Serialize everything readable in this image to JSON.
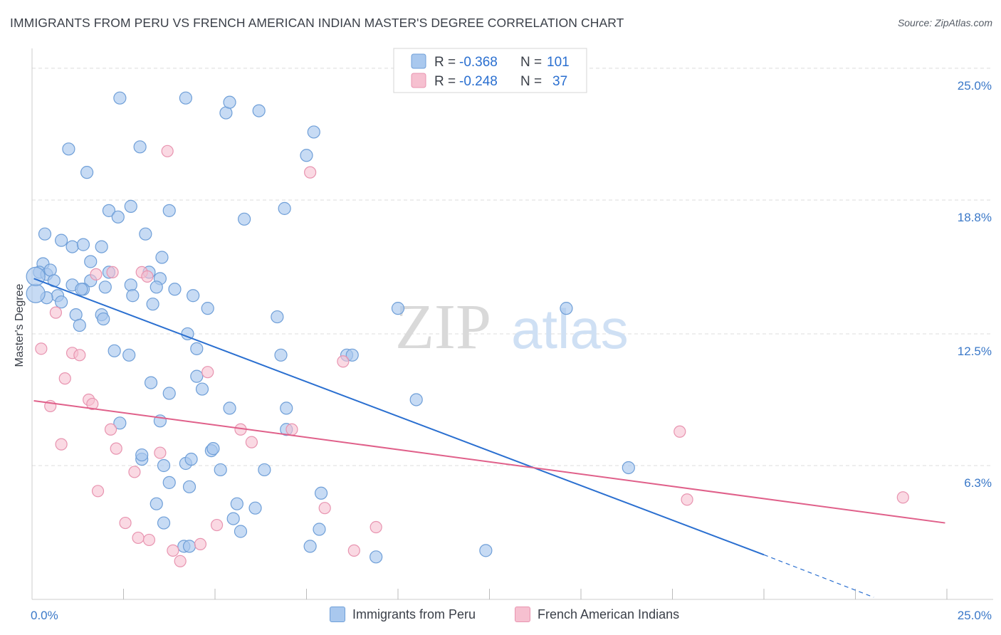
{
  "title": "IMMIGRANTS FROM PERU VS FRENCH AMERICAN INDIAN MASTER'S DEGREE CORRELATION CHART",
  "source": "Source: ZipAtlas.com",
  "watermark": {
    "zip": "ZIP",
    "atlas": "atlas"
  },
  "colors": {
    "blue_fill": "#a9c8ee",
    "blue_stroke": "#6f9fd8",
    "blue_line": "#2a6fd0",
    "pink_fill": "#f6c0d0",
    "pink_stroke": "#e894b0",
    "pink_line": "#e0608a",
    "axis_text": "#3a78c8",
    "grid": "#dddddd"
  },
  "legend_box": {
    "rows": [
      {
        "r_label": "R = ",
        "r_value": "-0.368",
        "n_label": "N = ",
        "n_value": "101",
        "series": "blue"
      },
      {
        "r_label": "R = ",
        "r_value": "-0.248",
        "n_label": "N = ",
        "n_value": "37",
        "series": "pink"
      }
    ]
  },
  "chart_data": {
    "type": "scatter",
    "ylabel": "Master's Degree",
    "x_tick_labels": [
      "0.0%",
      "25.0%"
    ],
    "y_tick_labels": [
      "25.0%",
      "18.8%",
      "12.5%",
      "6.3%"
    ],
    "y_ticks": [
      25.0,
      18.8,
      12.5,
      6.3
    ],
    "xlim": [
      0,
      25
    ],
    "ylim": [
      0,
      25.6
    ],
    "grid": true,
    "legend_position": "top-center",
    "series": [
      {
        "name": "Immigrants from Peru",
        "color": "#a9c8ee",
        "trend": {
          "x0": 0.05,
          "y0": 15.1,
          "x1": 20.0,
          "y1": 2.1,
          "dashed_to_x": 23.0,
          "dashed_to_y": 0.1
        },
        "points": [
          [
            0.3,
            15.8
          ],
          [
            0.2,
            15.4
          ],
          [
            0.4,
            15.3
          ],
          [
            0.5,
            15.5
          ],
          [
            0.6,
            15.0
          ],
          [
            0.7,
            14.3
          ],
          [
            0.4,
            14.2
          ],
          [
            0.8,
            14.0
          ],
          [
            0.35,
            17.2
          ],
          [
            0.8,
            16.9
          ],
          [
            1.1,
            16.6
          ],
          [
            1.4,
            16.7
          ],
          [
            1.9,
            16.6
          ],
          [
            1.6,
            15.9
          ],
          [
            2.1,
            15.4
          ],
          [
            1.6,
            15.0
          ],
          [
            1.1,
            14.8
          ],
          [
            1.4,
            14.6
          ],
          [
            1.35,
            14.6
          ],
          [
            2.0,
            14.7
          ],
          [
            2.7,
            14.8
          ],
          [
            2.75,
            14.3
          ],
          [
            3.2,
            15.4
          ],
          [
            3.5,
            15.1
          ],
          [
            3.4,
            14.7
          ],
          [
            3.3,
            13.9
          ],
          [
            3.9,
            14.6
          ],
          [
            4.4,
            14.3
          ],
          [
            4.8,
            13.7
          ],
          [
            1.2,
            13.4
          ],
          [
            1.3,
            12.9
          ],
          [
            1.9,
            13.4
          ],
          [
            1.95,
            13.2
          ],
          [
            1.0,
            21.2
          ],
          [
            1.5,
            20.1
          ],
          [
            2.4,
            23.6
          ],
          [
            2.95,
            21.3
          ],
          [
            4.2,
            23.6
          ],
          [
            5.3,
            22.9
          ],
          [
            5.4,
            23.4
          ],
          [
            6.2,
            23.0
          ],
          [
            7.7,
            22.0
          ],
          [
            7.5,
            20.9
          ],
          [
            2.7,
            18.5
          ],
          [
            2.1,
            18.3
          ],
          [
            2.35,
            18.0
          ],
          [
            3.1,
            17.2
          ],
          [
            3.75,
            18.3
          ],
          [
            5.8,
            17.9
          ],
          [
            6.9,
            18.4
          ],
          [
            3.55,
            16.1
          ],
          [
            4.25,
            12.5
          ],
          [
            2.25,
            11.7
          ],
          [
            2.65,
            11.5
          ],
          [
            4.5,
            11.8
          ],
          [
            6.7,
            13.3
          ],
          [
            6.8,
            11.5
          ],
          [
            8.6,
            11.5
          ],
          [
            8.75,
            11.5
          ],
          [
            10.0,
            13.7
          ],
          [
            14.6,
            13.7
          ],
          [
            4.5,
            10.5
          ],
          [
            4.65,
            9.9
          ],
          [
            3.25,
            10.2
          ],
          [
            3.75,
            9.7
          ],
          [
            2.4,
            8.3
          ],
          [
            3.5,
            8.4
          ],
          [
            5.4,
            9.0
          ],
          [
            6.95,
            9.0
          ],
          [
            6.95,
            8.0
          ],
          [
            3.0,
            6.6
          ],
          [
            3.0,
            6.8
          ],
          [
            3.6,
            6.3
          ],
          [
            3.75,
            5.5
          ],
          [
            4.2,
            6.4
          ],
          [
            4.35,
            6.6
          ],
          [
            4.3,
            5.3
          ],
          [
            4.9,
            7.0
          ],
          [
            4.95,
            7.1
          ],
          [
            5.15,
            6.1
          ],
          [
            6.35,
            6.1
          ],
          [
            3.4,
            4.5
          ],
          [
            3.6,
            3.6
          ],
          [
            5.6,
            4.5
          ],
          [
            5.5,
            3.8
          ],
          [
            6.1,
            4.3
          ],
          [
            5.7,
            3.2
          ],
          [
            7.9,
            5.0
          ],
          [
            7.85,
            3.3
          ],
          [
            7.6,
            2.5
          ],
          [
            4.15,
            2.5
          ],
          [
            4.3,
            2.5
          ],
          [
            9.4,
            2.0
          ],
          [
            10.5,
            9.4
          ],
          [
            12.4,
            2.3
          ],
          [
            16.3,
            6.2
          ]
        ],
        "large_points": [
          [
            0.1,
            14.4
          ],
          [
            0.1,
            15.2
          ]
        ]
      },
      {
        "name": "French American Indians",
        "color": "#f6c0d0",
        "trend": {
          "x0": 0.05,
          "y0": 9.35,
          "x1": 24.95,
          "y1": 3.6
        },
        "points": [
          [
            3.7,
            21.1
          ],
          [
            7.6,
            20.1
          ],
          [
            0.25,
            11.8
          ],
          [
            1.1,
            11.6
          ],
          [
            1.3,
            11.5
          ],
          [
            0.9,
            10.4
          ],
          [
            0.5,
            9.1
          ],
          [
            1.55,
            9.4
          ],
          [
            1.65,
            9.2
          ],
          [
            1.75,
            15.3
          ],
          [
            2.2,
            15.4
          ],
          [
            3.0,
            15.4
          ],
          [
            3.15,
            15.2
          ],
          [
            0.65,
            13.5
          ],
          [
            2.15,
            8.0
          ],
          [
            2.3,
            7.1
          ],
          [
            0.8,
            7.3
          ],
          [
            2.8,
            6.0
          ],
          [
            3.5,
            6.9
          ],
          [
            1.8,
            5.1
          ],
          [
            2.55,
            3.6
          ],
          [
            2.9,
            2.9
          ],
          [
            3.2,
            2.8
          ],
          [
            3.85,
            2.3
          ],
          [
            4.05,
            1.8
          ],
          [
            4.6,
            2.6
          ],
          [
            4.8,
            10.7
          ],
          [
            5.05,
            3.5
          ],
          [
            5.7,
            8.0
          ],
          [
            6.0,
            7.4
          ],
          [
            7.1,
            8.0
          ],
          [
            8.0,
            4.3
          ],
          [
            8.5,
            11.2
          ],
          [
            8.8,
            2.3
          ],
          [
            9.4,
            3.4
          ],
          [
            17.7,
            7.9
          ],
          [
            17.9,
            4.7
          ],
          [
            23.8,
            4.8
          ]
        ]
      }
    ]
  },
  "bottom_legend": [
    {
      "label": "Immigrants from Peru",
      "series": "blue"
    },
    {
      "label": "French American Indians",
      "series": "pink"
    }
  ]
}
